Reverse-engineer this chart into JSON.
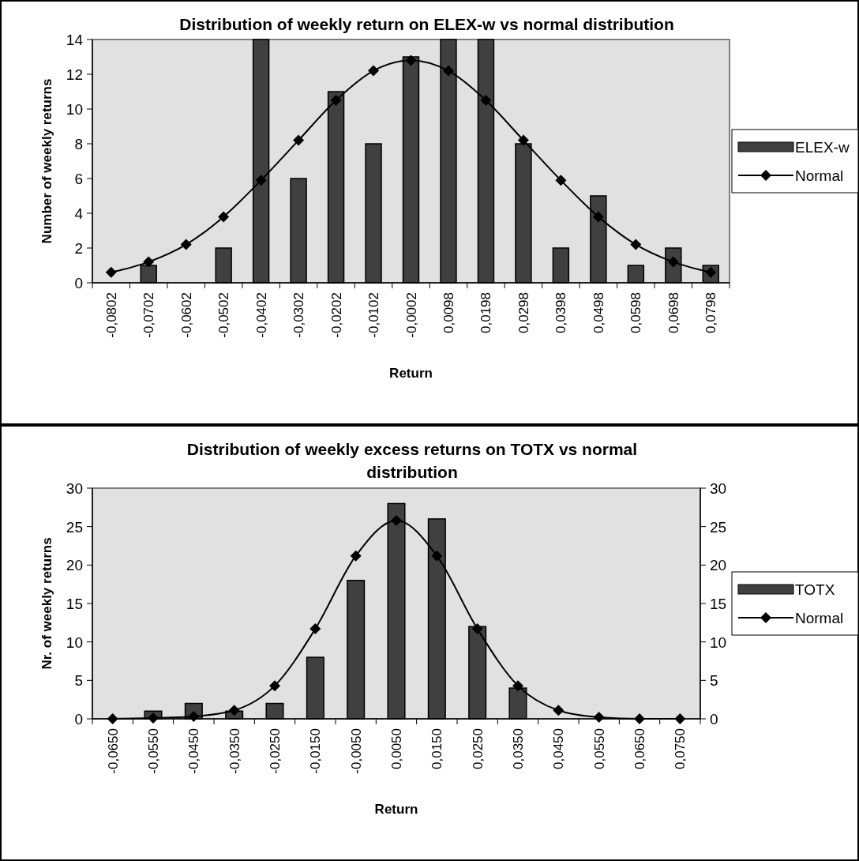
{
  "chart_data": [
    {
      "type": "bar",
      "title": "Distribution of weekly return on ELEX-w vs normal distribution",
      "xlabel": "Return",
      "ylabel": "Number of weekly returns",
      "categories": [
        "-0,0802",
        "-0,0702",
        "-0,0602",
        "-0,0502",
        "-0,0402",
        "-0,0302",
        "-0,0202",
        "-0,0102",
        "-0,0002",
        "0,0098",
        "0,0198",
        "0,0298",
        "0,0398",
        "0,0498",
        "0,0598",
        "0,0698",
        "0,0798"
      ],
      "series": [
        {
          "name": "ELEX-w",
          "color": "#404040",
          "values": [
            0,
            1,
            0,
            2,
            14,
            6,
            11,
            8,
            13,
            14,
            14,
            8,
            2,
            5,
            1,
            2,
            1
          ]
        },
        {
          "name": "Normal",
          "type": "line",
          "color": "#000000",
          "values": [
            0.6,
            1.2,
            2.2,
            3.8,
            5.9,
            8.2,
            10.5,
            12.2,
            12.8,
            12.2,
            10.5,
            8.2,
            5.9,
            3.8,
            2.2,
            1.2,
            0.6
          ]
        }
      ],
      "ylim": [
        0,
        14
      ],
      "yticks": [
        0,
        2,
        4,
        6,
        8,
        10,
        12,
        14
      ],
      "legend": "right",
      "marker": "diamond"
    },
    {
      "type": "bar",
      "title": "Distribution of weekly excess returns on TOTX vs normal distribution",
      "xlabel": "Return",
      "ylabel": "Nr. of weekly returns",
      "categories": [
        "-0,0650",
        "-0,0550",
        "-0,0450",
        "-0,0350",
        "-0,0250",
        "-0,0150",
        "-0,0050",
        "0,0050",
        "0,0150",
        "0,0250",
        "0,0350",
        "0,0450",
        "0,0550",
        "0,0650",
        "0,0750"
      ],
      "series": [
        {
          "name": "TOTX",
          "color": "#404040",
          "values": [
            0,
            1,
            2,
            1,
            2,
            8,
            18,
            28,
            26,
            12,
            4,
            0,
            0,
            0,
            0
          ]
        },
        {
          "name": "Normal",
          "type": "line",
          "color": "#000000",
          "values": [
            0,
            0.1,
            0.3,
            1.1,
            4.3,
            11.7,
            21.2,
            25.8,
            21.2,
            11.7,
            4.3,
            1.1,
            0.2,
            0,
            0
          ]
        }
      ],
      "ylim": [
        0,
        30
      ],
      "yticks": [
        0,
        5,
        10,
        15,
        20,
        25,
        30
      ],
      "y2lim": [
        0,
        30
      ],
      "y2ticks": [
        0,
        5,
        10,
        15,
        20,
        25,
        30
      ],
      "legend": "right",
      "marker": "diamond"
    }
  ]
}
